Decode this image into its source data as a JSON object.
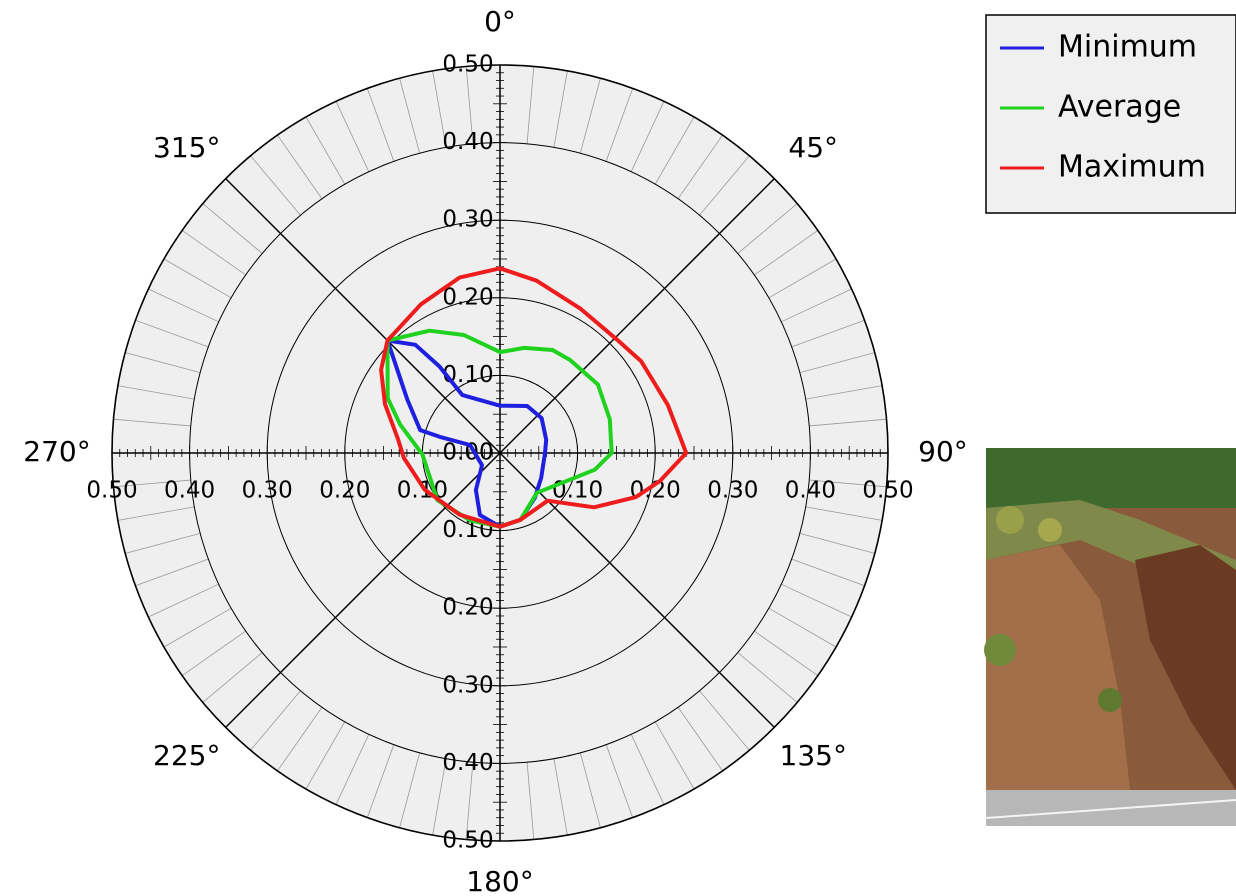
{
  "chart_data": {
    "type": "polar",
    "rlim": [
      0,
      0.5
    ],
    "rticks": [
      {
        "value": 0,
        "label": "0.00"
      },
      {
        "value": 0.1,
        "label": "0.10"
      },
      {
        "value": 0.2,
        "label": "0.20"
      },
      {
        "value": 0.3,
        "label": "0.30"
      },
      {
        "value": 0.4,
        "label": "0.40"
      },
      {
        "value": 0.5,
        "label": "0.50"
      }
    ],
    "thetaticks": [
      {
        "value": 0,
        "label": "0°"
      },
      {
        "value": 45,
        "label": "45°"
      },
      {
        "value": 90,
        "label": "90°"
      },
      {
        "value": 135,
        "label": "135°"
      },
      {
        "value": 180,
        "label": "180°"
      },
      {
        "value": 225,
        "label": "225°"
      },
      {
        "value": 270,
        "label": "270°"
      },
      {
        "value": 315,
        "label": "315°"
      }
    ],
    "series": [
      {
        "name": "Minimum",
        "color": "#1f1fe0",
        "theta": [
          0,
          30,
          50,
          74,
          90,
          121,
          142,
          163,
          180,
          198,
          213,
          236,
          285,
          285,
          286,
          300,
          315,
          322,
          325,
          327
        ],
        "values": [
          0.061,
          0.07,
          0.07,
          0.062,
          0.058,
          0.062,
          0.073,
          0.09,
          0.095,
          0.084,
          0.057,
          0.028,
          0.04,
          0.08,
          0.107,
          0.138,
          0.205,
          0.177,
          0.136,
          0.089
        ]
      },
      {
        "name": "Average",
        "color": "#1ed21e",
        "theta": [
          0,
          13,
          27,
          37,
          55,
          73,
          90,
          100,
          109,
          137,
          163,
          180,
          204,
          233,
          269,
          286,
          296,
          315,
          330,
          343
        ],
        "values": [
          0.13,
          0.139,
          0.149,
          0.15,
          0.154,
          0.148,
          0.144,
          0.124,
          0.1,
          0.07,
          0.09,
          0.095,
          0.095,
          0.101,
          0.1,
          0.134,
          0.161,
          0.205,
          0.182,
          0.159
        ]
      },
      {
        "name": "Maximum",
        "color": "#ee1c1c",
        "theta": [
          0,
          12,
          29,
          46,
          57,
          74,
          90,
          100,
          108,
          120,
          135,
          163,
          180,
          213,
          244,
          267,
          278,
          293,
          305,
          315,
          332,
          347
        ],
        "values": [
          0.238,
          0.227,
          0.213,
          0.21,
          0.217,
          0.225,
          0.24,
          0.209,
          0.184,
          0.14,
          0.087,
          0.09,
          0.095,
          0.095,
          0.108,
          0.124,
          0.133,
          0.161,
          0.187,
          0.205,
          0.217,
          0.232
        ]
      }
    ]
  }
}
